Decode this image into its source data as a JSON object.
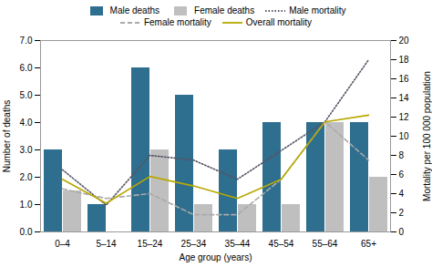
{
  "chart_data": {
    "type": "bar",
    "categories": [
      "0–4",
      "5–14",
      "15–24",
      "25–34",
      "35–44",
      "45–54",
      "55–64",
      "65+"
    ],
    "series": [
      {
        "name": "Male deaths",
        "type": "bar",
        "color": "#2e6e8e",
        "values": [
          3,
          1,
          6,
          5,
          3,
          4,
          4,
          4
        ]
      },
      {
        "name": "Female deaths",
        "type": "bar",
        "color": "#c0bfbf",
        "values": [
          1.5,
          0,
          3,
          1,
          1,
          1,
          4,
          2
        ]
      },
      {
        "name": "Male mortality",
        "type": "line",
        "color": "#555566",
        "line_style": "dotted",
        "axis": "y2",
        "values": [
          6.5,
          2.8,
          8.0,
          7.5,
          5.5,
          8.5,
          11.5,
          18.0
        ]
      },
      {
        "name": "Female mortality",
        "type": "line",
        "color": "#aaaaaa",
        "line_style": "dashed",
        "axis": "y2",
        "values": [
          4.5,
          3.5,
          4.0,
          1.8,
          1.8,
          5.5,
          11.5,
          7.5
        ]
      },
      {
        "name": "Overall mortality",
        "type": "line",
        "color": "#b8a800",
        "line_style": "solid",
        "axis": "y2",
        "values": [
          5.5,
          3.0,
          5.8,
          4.8,
          3.5,
          5.5,
          11.5,
          12.2
        ]
      }
    ],
    "xlabel": "Age group (years)",
    "ylabel": "Number of deaths",
    "y2label": "Mortality per 100 000 population",
    "ylim": [
      0,
      7
    ],
    "yticks": [
      0,
      1,
      2,
      3,
      4,
      5,
      6,
      7
    ],
    "y2lim": [
      0,
      20
    ],
    "y2ticks": [
      0,
      2,
      4,
      6,
      8,
      10,
      12,
      14,
      16,
      18,
      20
    ],
    "grid": false,
    "legend": "top"
  }
}
